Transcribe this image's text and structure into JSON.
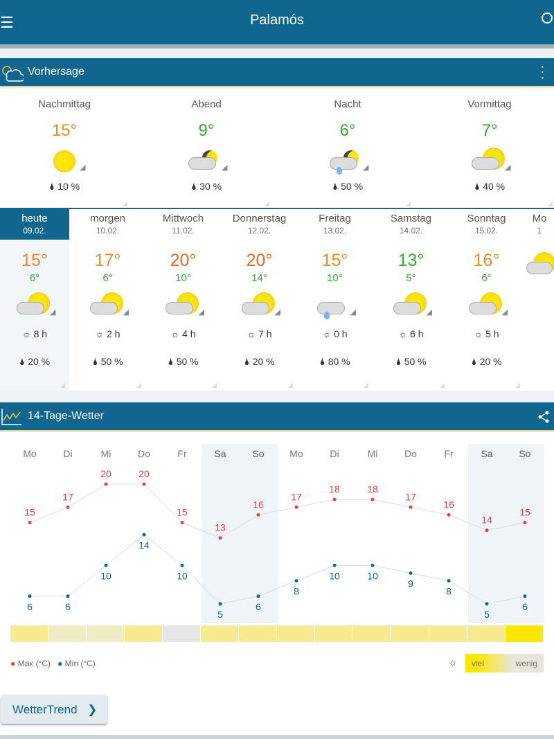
{
  "header": {
    "title": "Palamós",
    "menu_icon": "menu-icon",
    "search_icon": "search-icon"
  },
  "forecast": {
    "title": "Vorhersage",
    "periods": [
      {
        "name": "Nachmittag",
        "temp": "15°",
        "color": "#f08a24",
        "rain": "10 %",
        "icon": "sun"
      },
      {
        "name": "Abend",
        "temp": "9°",
        "color": "#3aa639",
        "rain": "30 %",
        "icon": "cloud-moon"
      },
      {
        "name": "Nacht",
        "temp": "6°",
        "color": "#3aa639",
        "rain": "50 %",
        "icon": "cloud-moon-rain"
      },
      {
        "name": "Vormittag",
        "temp": "7°",
        "color": "#3aa639",
        "rain": "40 %",
        "icon": "cloud-sun"
      }
    ]
  },
  "days": [
    {
      "name": "heute",
      "date": "09.02.",
      "max": "15°",
      "maxColor": "#f08a24",
      "min": "6°",
      "sun": "8 h",
      "rain": "20 %",
      "icon": "cloud-sun",
      "selected": true
    },
    {
      "name": "morgen",
      "date": "10.02.",
      "max": "17°",
      "maxColor": "#f08a24",
      "min": "6°",
      "sun": "2 h",
      "rain": "50 %",
      "icon": "cloud-sun"
    },
    {
      "name": "Mittwoch",
      "date": "11.02.",
      "max": "20°",
      "maxColor": "#eb6a24",
      "min": "10°",
      "sun": "4 h",
      "rain": "50 %",
      "icon": "cloud-sun"
    },
    {
      "name": "Donnerstag",
      "date": "12.02.",
      "max": "20°",
      "maxColor": "#eb6a24",
      "min": "14°",
      "sun": "7 h",
      "rain": "20 %",
      "icon": "cloud-sun"
    },
    {
      "name": "Freitag",
      "date": "13.02.",
      "max": "15°",
      "maxColor": "#f08a24",
      "min": "10°",
      "sun": "0 h",
      "rain": "80 %",
      "icon": "cloud-rain"
    },
    {
      "name": "Samstag",
      "date": "14.02.",
      "max": "13°",
      "maxColor": "#3aa639",
      "min": "5°",
      "sun": "6 h",
      "rain": "50 %",
      "icon": "cloud-sun"
    },
    {
      "name": "Sonntag",
      "date": "15.02.",
      "max": "16°",
      "maxColor": "#f08a24",
      "min": "6°",
      "sun": "5 h",
      "rain": "20 %",
      "icon": "cloud-sun"
    },
    {
      "name": "Mo",
      "date": "1",
      "max": "",
      "maxColor": "#f08a24",
      "min": "",
      "sun": "",
      "rain": "",
      "icon": "cloud-sun"
    }
  ],
  "trend": {
    "title": "14-Tage-Wetter",
    "button": "WetterTrend"
  },
  "chart_data": {
    "type": "line",
    "categories": [
      "Mo",
      "Di",
      "Mi",
      "Do",
      "Fr",
      "Sa",
      "So",
      "Mo",
      "Di",
      "Mi",
      "Do",
      "Fr",
      "Sa",
      "So"
    ],
    "weekend": [
      5,
      6,
      12,
      13
    ],
    "series": [
      {
        "name": "Max (°C)",
        "color": "#e84040",
        "values": [
          15,
          17,
          20,
          20,
          15,
          13,
          16,
          17,
          18,
          18,
          17,
          16,
          14,
          15
        ]
      },
      {
        "name": "Min (°C)",
        "color": "#11668f",
        "values": [
          6,
          6,
          10,
          14,
          10,
          5,
          6,
          8,
          10,
          10,
          9,
          8,
          5,
          6
        ]
      }
    ],
    "sunshine": [
      0.6,
      0.3,
      0.3,
      0.6,
      "rain",
      0.6,
      0.6,
      0.6,
      0.6,
      0.6,
      0.6,
      0.6,
      0.6,
      1.0
    ],
    "sun_legend": {
      "high": "viel",
      "low": "wenig"
    }
  }
}
